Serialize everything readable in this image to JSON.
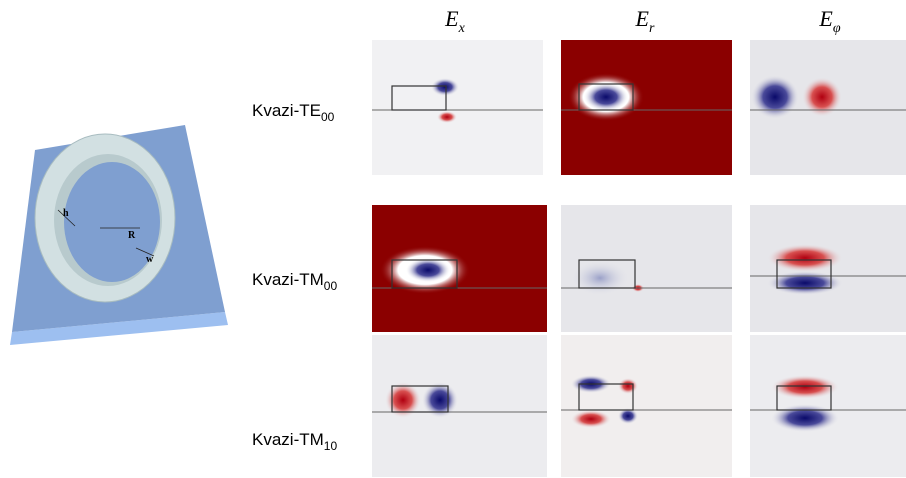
{
  "columns": [
    {
      "symbol": "E",
      "sub": "x"
    },
    {
      "symbol": "E",
      "sub": "r"
    },
    {
      "symbol": "E",
      "sub": "φ"
    }
  ],
  "rows": [
    {
      "text": "Kvazi-TE",
      "sub": "00"
    },
    {
      "text": "Kvazi-TM",
      "sub": "00"
    },
    {
      "text": "Kvazi-TM",
      "sub": "10"
    }
  ],
  "diagram": {
    "labels": [
      "h",
      "R",
      "w"
    ]
  }
}
